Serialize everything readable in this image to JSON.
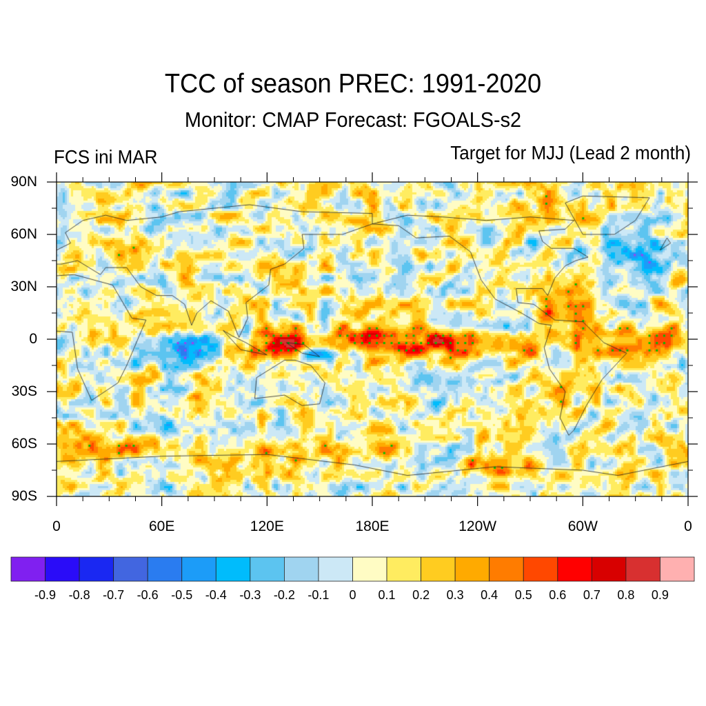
{
  "title": "TCC of season PREC: 1991-2020",
  "subtitle": "Monitor: CMAP   Forecast: FGOALS-s2",
  "left_label": "FCS ini MAR",
  "right_label": "Target for MJJ (Lead 2 month)",
  "chart_data": {
    "type": "heatmap",
    "title": "TCC of season PREC: 1991-2020",
    "subtitle": "Monitor: CMAP   Forecast: FGOALS-s2",
    "annotations": [
      "FCS ini MAR",
      "Target for MJJ (Lead 2 month)"
    ],
    "variable": "temporal correlation coefficient of seasonal precipitation",
    "x_axis": {
      "range": [
        0,
        360
      ],
      "ticks": [
        0,
        60,
        120,
        180,
        240,
        300,
        360
      ],
      "tick_labels": [
        "0",
        "60E",
        "120E",
        "180E",
        "120W",
        "60W",
        "0"
      ]
    },
    "y_axis": {
      "range": [
        -90,
        90
      ],
      "ticks": [
        90,
        60,
        30,
        0,
        -30,
        -60,
        -90
      ],
      "tick_labels": [
        "90N",
        "60N",
        "30N",
        "0",
        "30S",
        "60S",
        "90S"
      ]
    },
    "colorbar": {
      "levels": [
        -0.9,
        -0.8,
        -0.7,
        -0.6,
        -0.5,
        -0.4,
        -0.3,
        -0.2,
        -0.1,
        0,
        0.1,
        0.2,
        0.3,
        0.4,
        0.5,
        0.6,
        0.7,
        0.8,
        0.9
      ],
      "labels": [
        "-0.9",
        "-0.8",
        "-0.7",
        "-0.6",
        "-0.5",
        "-0.4",
        "-0.3",
        "-0.2",
        "-0.1",
        "0",
        "0.1",
        "0.2",
        "0.3",
        "0.4",
        "0.5",
        "0.6",
        "0.7",
        "0.8",
        "0.9"
      ],
      "colors": [
        "#8020f0",
        "#2a0cf8",
        "#1a28f2",
        "#4266e0",
        "#2a7cf0",
        "#1c9cf8",
        "#00bcfc",
        "#5cc4f0",
        "#a0d4f0",
        "#cce8f6",
        "#fffcc4",
        "#ffec60",
        "#ffcc20",
        "#ffaa00",
        "#ff7c00",
        "#ff4800",
        "#ff0000",
        "#d80000",
        "#d83030",
        "#ffb0b0"
      ],
      "placement": "bottom"
    },
    "stipple": {
      "positive_significant": "#00c000",
      "negative_significant": "#a040f0"
    },
    "key_features": [
      {
        "region": "central-eastern equatorial Pacific (170E-110W, 10S-10N)",
        "value_range": [
          0.5,
          0.8
        ]
      },
      {
        "region": "Maritime Continent (110E-140E, 15S-5N)",
        "value_range": [
          0.5,
          0.8
        ]
      },
      {
        "region": "equatorial Atlantic / northern South America (60W-0, 5S-10N)",
        "value_range": [
          0.5,
          0.8
        ]
      },
      {
        "region": "western tropical Pacific / Indian Ocean",
        "value_range": [
          -0.5,
          -0.2
        ]
      }
    ]
  }
}
